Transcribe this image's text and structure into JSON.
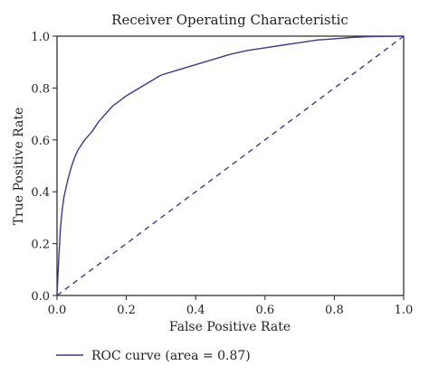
{
  "chart_data": {
    "type": "line",
    "title": "Receiver Operating Characteristic",
    "xlabel": "False Positive Rate",
    "ylabel": "True Positive Rate",
    "xlim": [
      0,
      1
    ],
    "ylim": [
      0,
      1
    ],
    "xticks": [
      "0.0",
      "0.2",
      "0.4",
      "0.6",
      "0.8",
      "1.0"
    ],
    "yticks": [
      "0.0",
      "0.2",
      "0.4",
      "0.6",
      "0.8",
      "1.0"
    ],
    "grid": false,
    "legend_position": "bottom-left",
    "series": [
      {
        "name": "ROC curve (area = 0.87)",
        "style": "solid",
        "color": "#3a3a8f",
        "x": [
          0,
          0.005,
          0.01,
          0.015,
          0.02,
          0.03,
          0.04,
          0.05,
          0.06,
          0.07,
          0.08,
          0.1,
          0.12,
          0.14,
          0.16,
          0.18,
          0.2,
          0.25,
          0.3,
          0.35,
          0.4,
          0.45,
          0.5,
          0.55,
          0.6,
          0.65,
          0.7,
          0.75,
          0.8,
          0.85,
          0.9,
          0.95,
          1.0
        ],
        "y": [
          0,
          0.14,
          0.26,
          0.33,
          0.38,
          0.44,
          0.49,
          0.53,
          0.56,
          0.58,
          0.6,
          0.63,
          0.67,
          0.7,
          0.73,
          0.75,
          0.77,
          0.81,
          0.85,
          0.87,
          0.89,
          0.91,
          0.93,
          0.945,
          0.955,
          0.965,
          0.975,
          0.985,
          0.99,
          0.995,
          0.998,
          0.999,
          1.0
        ]
      },
      {
        "name": "",
        "style": "dashed",
        "color": "#3a3a8f",
        "x": [
          0,
          1
        ],
        "y": [
          0,
          1
        ]
      }
    ]
  }
}
